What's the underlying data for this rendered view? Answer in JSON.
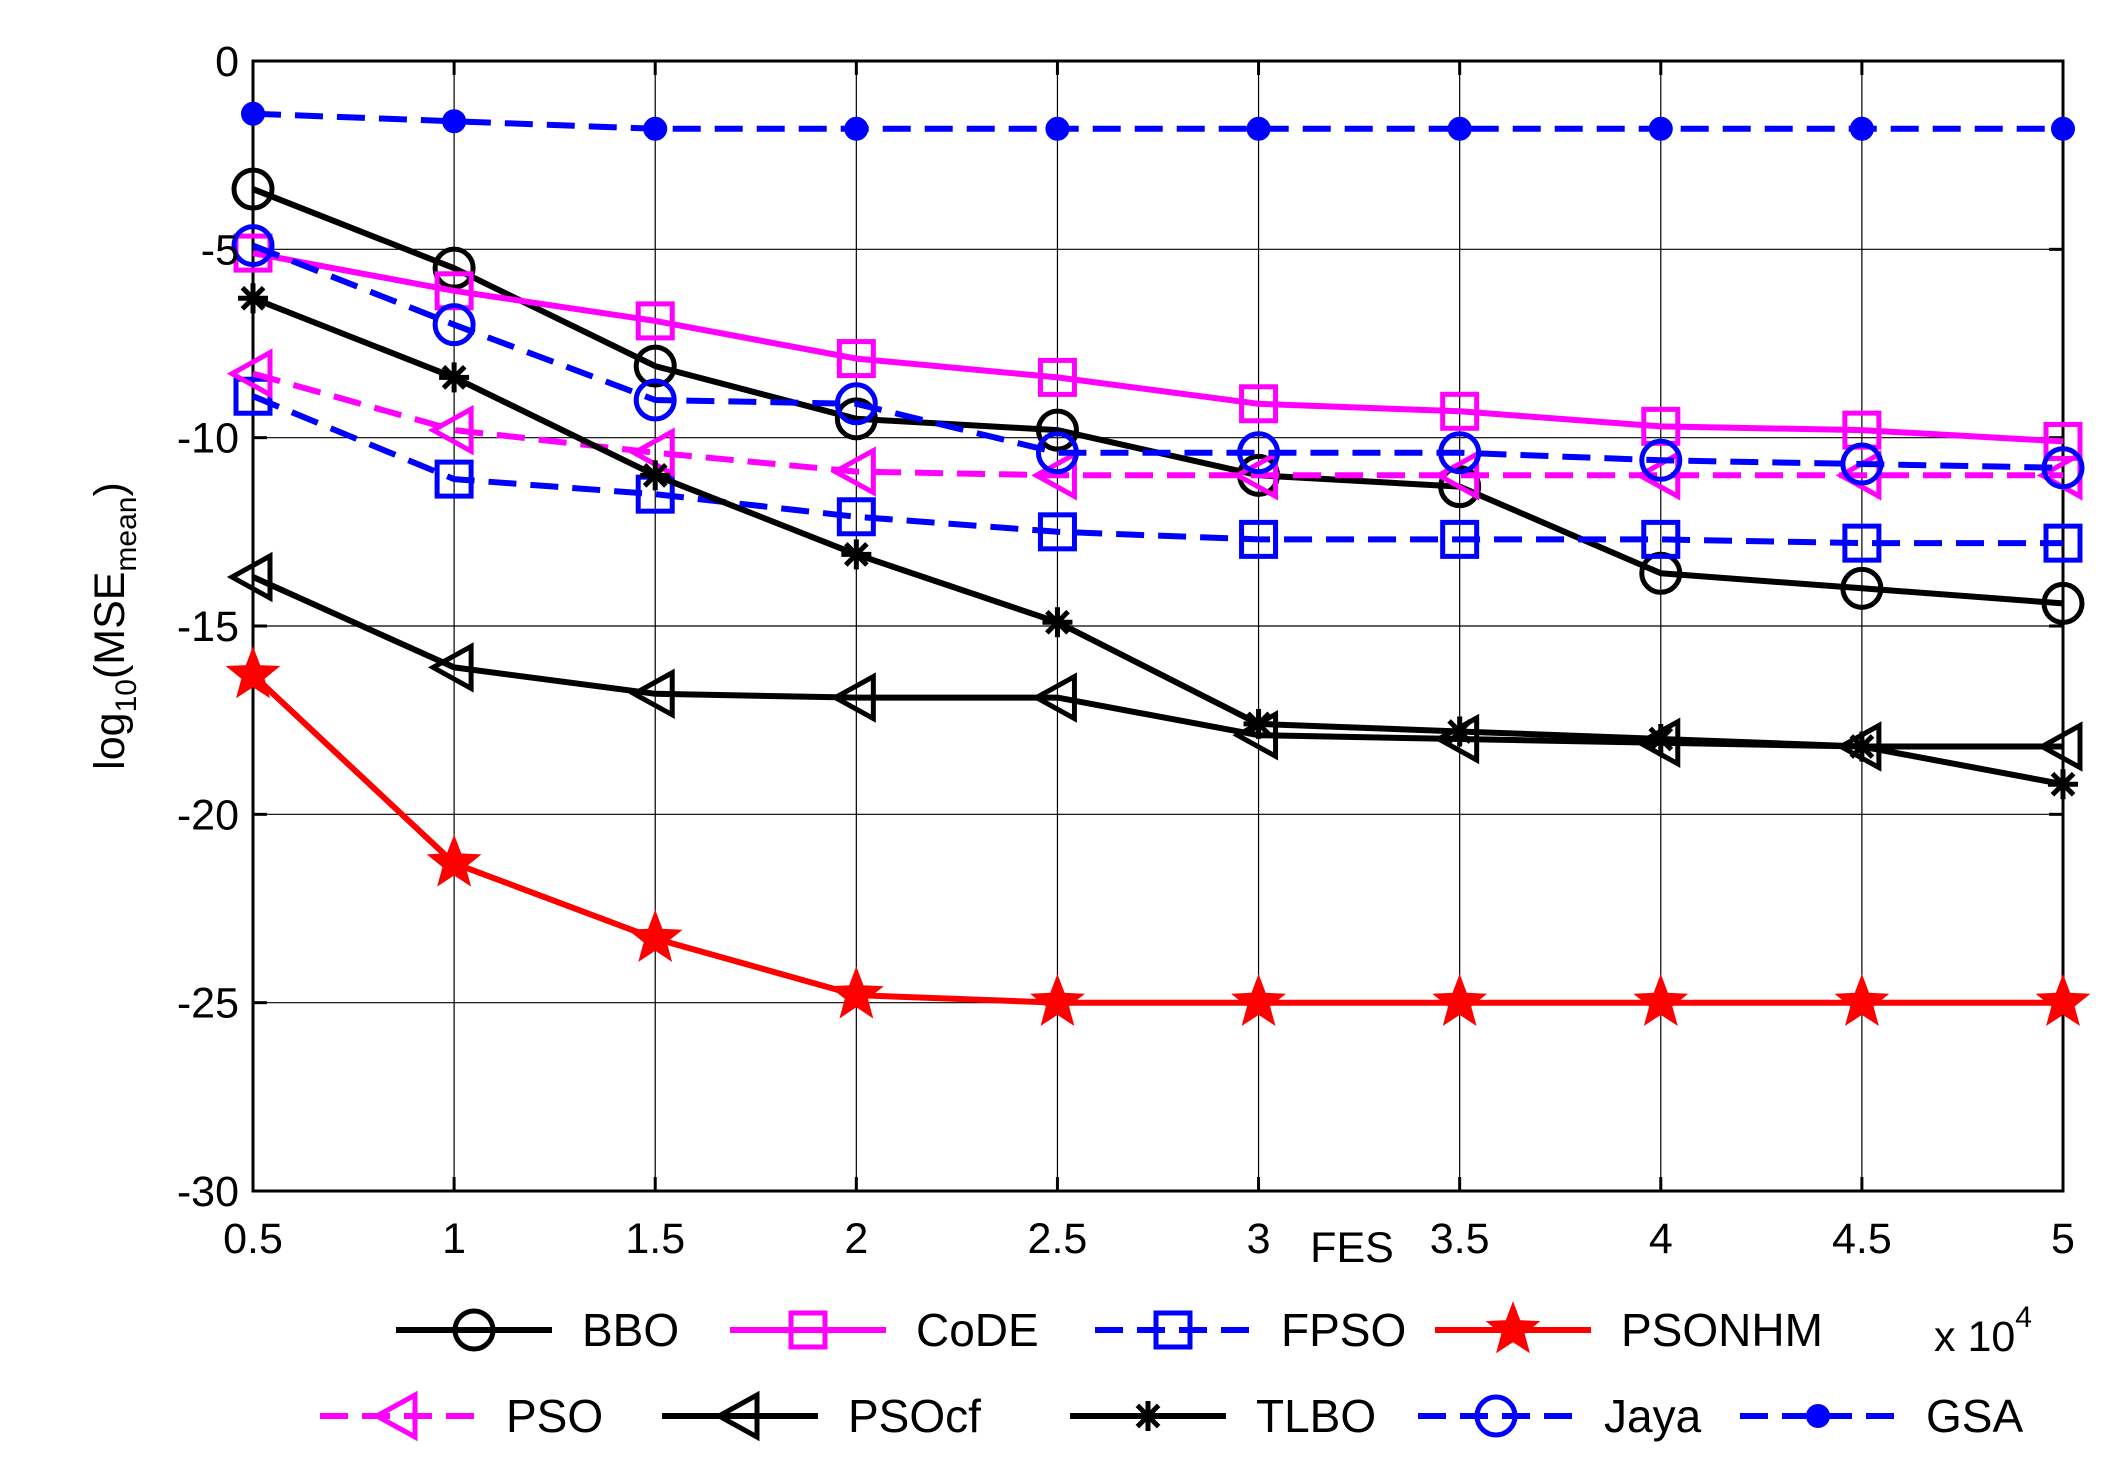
{
  "chart_data": {
    "type": "line",
    "xlabel": "FES",
    "ylabel": {
      "base": "log",
      "sub": "10",
      "open": "(MSE",
      "sub2": "mean",
      "close": ")"
    },
    "x_multiplier": {
      "base": "x 10",
      "exp": "4"
    },
    "x": [
      0.5,
      1,
      1.5,
      2,
      2.5,
      3,
      3.5,
      4,
      4.5,
      5
    ],
    "x_tick_labels": [
      "0.5",
      "1",
      "1.5",
      "2",
      "2.5",
      "3",
      "3.5",
      "4",
      "4.5",
      "5"
    ],
    "y_ticks": [
      0,
      -5,
      -10,
      -15,
      -20,
      -25,
      -30
    ],
    "y_tick_labels": [
      "0",
      "-5",
      "-10",
      "-15",
      "-20",
      "-25",
      "-30"
    ],
    "xlim": [
      0.5,
      5
    ],
    "ylim": [
      -30,
      0
    ],
    "grid": true,
    "legend_position": "bottom",
    "series": [
      {
        "name": "BBO",
        "color": "#000000",
        "dash": "solid",
        "marker": "circle",
        "values": [
          -3.4,
          -5.5,
          -8.1,
          -9.5,
          -9.8,
          -11.0,
          -11.3,
          -13.6,
          -14.0,
          -14.4
        ]
      },
      {
        "name": "CoDE",
        "color": "#ff00ff",
        "dash": "solid",
        "marker": "square",
        "values": [
          -5.1,
          -6.1,
          -6.9,
          -7.9,
          -8.4,
          -9.1,
          -9.3,
          -9.7,
          -9.8,
          -10.1
        ]
      },
      {
        "name": "FPSO",
        "color": "#0000ff",
        "dash": "dashed",
        "marker": "square",
        "values": [
          -8.9,
          -11.1,
          -11.5,
          -12.1,
          -12.5,
          -12.7,
          -12.7,
          -12.7,
          -12.8,
          -12.8
        ]
      },
      {
        "name": "PSONHM",
        "color": "#ff0000",
        "dash": "solid",
        "marker": "star",
        "values": [
          -16.3,
          -21.3,
          -23.3,
          -24.8,
          -25.0,
          -25.0,
          -25.0,
          -25.0,
          -25.0,
          -25.0
        ]
      },
      {
        "name": "PSO",
        "color": "#ff00ff",
        "dash": "dashed",
        "marker": "triangle-left",
        "values": [
          -8.3,
          -9.8,
          -10.4,
          -10.9,
          -11.0,
          -11.0,
          -11.0,
          -11.0,
          -11.0,
          -11.0
        ]
      },
      {
        "name": "PSOcf",
        "color": "#000000",
        "dash": "solid",
        "marker": "triangle-left",
        "values": [
          -13.7,
          -16.1,
          -16.8,
          -16.9,
          -16.9,
          -17.9,
          -18.0,
          -18.1,
          -18.2,
          -18.2
        ]
      },
      {
        "name": "TLBO",
        "color": "#000000",
        "dash": "solid",
        "marker": "asterisk",
        "values": [
          -6.3,
          -8.4,
          -11.0,
          -13.1,
          -14.9,
          -17.6,
          -17.8,
          -18.0,
          -18.2,
          -19.2
        ]
      },
      {
        "name": "Jaya",
        "color": "#0000ff",
        "dash": "dashed",
        "marker": "circle",
        "values": [
          -4.9,
          -7.0,
          -9.0,
          -9.1,
          -10.4,
          -10.4,
          -10.4,
          -10.6,
          -10.7,
          -10.8
        ]
      },
      {
        "name": "GSA",
        "color": "#0000ff",
        "dash": "dashed",
        "marker": "dot",
        "values": [
          -1.4,
          -1.6,
          -1.8,
          -1.8,
          -1.8,
          -1.8,
          -1.8,
          -1.8,
          -1.8,
          -1.8
        ]
      }
    ],
    "legend_rows": [
      [
        "BBO",
        "CoDE",
        "FPSO",
        "PSONHM"
      ],
      [
        "PSO",
        "PSOcf",
        "TLBO",
        "Jaya",
        "GSA"
      ]
    ]
  }
}
